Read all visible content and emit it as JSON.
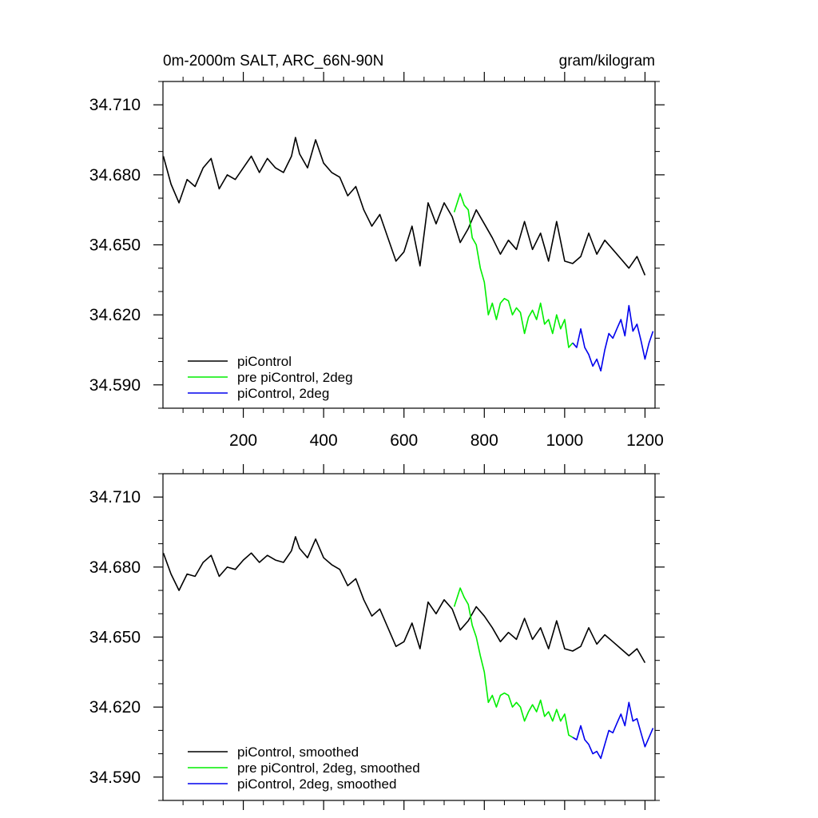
{
  "chart_data": [
    {
      "type": "line",
      "title_left": "0m-2000m SALT, ARC_66N-90N",
      "title_right": "gram/kilogram",
      "xlim": [
        0,
        1225
      ],
      "ylim": [
        34.58,
        34.72
      ],
      "yticks": [
        34.59,
        34.62,
        34.65,
        34.68,
        34.71
      ],
      "ytick_labels": [
        "34.590",
        "34.620",
        "34.650",
        "34.680",
        "34.710"
      ],
      "xticks": [
        200,
        400,
        600,
        800,
        1000,
        1200
      ],
      "xtick_labels": [
        "200",
        "400",
        "600",
        "800",
        "1000",
        "1200"
      ],
      "legend_position": "bottom-left",
      "series": [
        {
          "name": "piControl",
          "color": "#000000",
          "x": [
            1,
            20,
            40,
            60,
            80,
            100,
            120,
            140,
            160,
            180,
            200,
            220,
            240,
            260,
            280,
            300,
            320,
            330,
            340,
            360,
            380,
            400,
            420,
            440,
            460,
            480,
            500,
            520,
            540,
            560,
            580,
            600,
            620,
            640,
            660,
            680,
            700,
            720,
            740,
            760,
            780,
            800,
            820,
            840,
            860,
            880,
            900,
            920,
            940,
            960,
            980,
            1000,
            1020,
            1040,
            1060,
            1080,
            1100,
            1120,
            1140,
            1160,
            1180,
            1200
          ],
          "y": [
            34.688,
            34.676,
            34.668,
            34.678,
            34.675,
            34.683,
            34.687,
            34.674,
            34.68,
            34.678,
            34.683,
            34.688,
            34.681,
            34.687,
            34.683,
            34.681,
            34.688,
            34.696,
            34.689,
            34.683,
            34.695,
            34.685,
            34.681,
            34.679,
            34.671,
            34.675,
            34.665,
            34.658,
            34.663,
            34.653,
            34.643,
            34.647,
            34.658,
            34.641,
            34.668,
            34.659,
            34.668,
            34.662,
            34.651,
            34.657,
            34.665,
            34.659,
            34.653,
            34.646,
            34.652,
            34.648,
            34.66,
            34.648,
            34.655,
            34.643,
            34.66,
            34.643,
            34.642,
            34.645,
            34.655,
            34.646,
            34.652,
            34.648,
            34.644,
            34.64,
            34.645,
            34.637
          ]
        },
        {
          "name": "pre piControl, 2deg",
          "color": "#00ee00",
          "x": [
            725,
            740,
            750,
            760,
            770,
            780,
            790,
            800,
            810,
            820,
            830,
            840,
            850,
            860,
            870,
            880,
            890,
            900,
            910,
            920,
            930,
            940,
            950,
            960,
            970,
            980,
            990,
            1000,
            1010,
            1020
          ],
          "y": [
            34.664,
            34.672,
            34.667,
            34.665,
            34.653,
            34.65,
            34.64,
            34.634,
            34.62,
            34.625,
            34.618,
            34.625,
            34.627,
            34.626,
            34.62,
            34.623,
            34.621,
            34.612,
            34.619,
            34.622,
            34.618,
            34.625,
            34.616,
            34.618,
            34.612,
            34.62,
            34.614,
            34.618,
            34.606,
            34.608
          ]
        },
        {
          "name": "piControl, 2deg",
          "color": "#0000ee",
          "x": [
            1020,
            1030,
            1040,
            1050,
            1060,
            1070,
            1080,
            1090,
            1100,
            1110,
            1120,
            1130,
            1140,
            1150,
            1160,
            1170,
            1180,
            1190,
            1200,
            1210,
            1220
          ],
          "y": [
            34.608,
            34.606,
            34.614,
            34.606,
            34.603,
            34.598,
            34.601,
            34.596,
            34.605,
            34.612,
            34.61,
            34.614,
            34.618,
            34.611,
            34.624,
            34.613,
            34.616,
            34.609,
            34.601,
            34.608,
            34.613
          ]
        }
      ]
    },
    {
      "type": "line",
      "xlim": [
        0,
        1225
      ],
      "ylim": [
        34.58,
        34.72
      ],
      "yticks": [
        34.59,
        34.62,
        34.65,
        34.68,
        34.71
      ],
      "ytick_labels": [
        "34.590",
        "34.620",
        "34.650",
        "34.680",
        "34.710"
      ],
      "xticks": [
        200,
        400,
        600,
        800,
        1000,
        1200
      ],
      "legend_position": "bottom-left",
      "series": [
        {
          "name": "piControl, smoothed",
          "color": "#000000",
          "x": [
            1,
            20,
            40,
            60,
            80,
            100,
            120,
            140,
            160,
            180,
            200,
            220,
            240,
            260,
            280,
            300,
            320,
            330,
            340,
            360,
            380,
            400,
            420,
            440,
            460,
            480,
            500,
            520,
            540,
            560,
            580,
            600,
            620,
            640,
            660,
            680,
            700,
            720,
            740,
            760,
            780,
            800,
            820,
            840,
            860,
            880,
            900,
            920,
            940,
            960,
            980,
            1000,
            1020,
            1040,
            1060,
            1080,
            1100,
            1120,
            1140,
            1160,
            1180,
            1200
          ],
          "y": [
            34.686,
            34.677,
            34.67,
            34.677,
            34.676,
            34.682,
            34.685,
            34.676,
            34.68,
            34.679,
            34.683,
            34.686,
            34.682,
            34.685,
            34.683,
            34.682,
            34.687,
            34.693,
            34.688,
            34.684,
            34.692,
            34.684,
            34.681,
            34.679,
            34.672,
            34.675,
            34.666,
            34.659,
            34.662,
            34.654,
            34.646,
            34.648,
            34.656,
            34.645,
            34.665,
            34.66,
            34.666,
            34.662,
            34.653,
            34.657,
            34.663,
            34.659,
            34.654,
            34.648,
            34.652,
            34.649,
            34.658,
            34.649,
            34.654,
            34.645,
            34.657,
            34.645,
            34.644,
            34.646,
            34.654,
            34.647,
            34.651,
            34.648,
            34.645,
            34.642,
            34.645,
            34.639
          ]
        },
        {
          "name": "pre piControl, 2deg, smoothed",
          "color": "#00ee00",
          "x": [
            725,
            740,
            750,
            760,
            770,
            780,
            790,
            800,
            810,
            820,
            830,
            840,
            850,
            860,
            870,
            880,
            890,
            900,
            910,
            920,
            930,
            940,
            950,
            960,
            970,
            980,
            990,
            1000,
            1010,
            1020
          ],
          "y": [
            34.663,
            34.671,
            34.667,
            34.664,
            34.655,
            34.65,
            34.642,
            34.635,
            34.622,
            34.625,
            34.62,
            34.625,
            34.626,
            34.625,
            34.62,
            34.622,
            34.62,
            34.614,
            34.618,
            34.621,
            34.618,
            34.623,
            34.616,
            34.618,
            34.614,
            34.619,
            34.614,
            34.617,
            34.608,
            34.607
          ]
        },
        {
          "name": "piControl, 2deg, smoothed",
          "color": "#0000ee",
          "x": [
            1020,
            1030,
            1040,
            1050,
            1060,
            1070,
            1080,
            1090,
            1100,
            1110,
            1120,
            1130,
            1140,
            1150,
            1160,
            1170,
            1180,
            1190,
            1200,
            1210,
            1220
          ],
          "y": [
            34.607,
            34.606,
            34.612,
            34.606,
            34.604,
            34.6,
            34.601,
            34.598,
            34.604,
            34.61,
            34.609,
            34.613,
            34.617,
            34.612,
            34.622,
            34.614,
            34.615,
            34.609,
            34.603,
            34.607,
            34.611
          ]
        }
      ]
    }
  ]
}
